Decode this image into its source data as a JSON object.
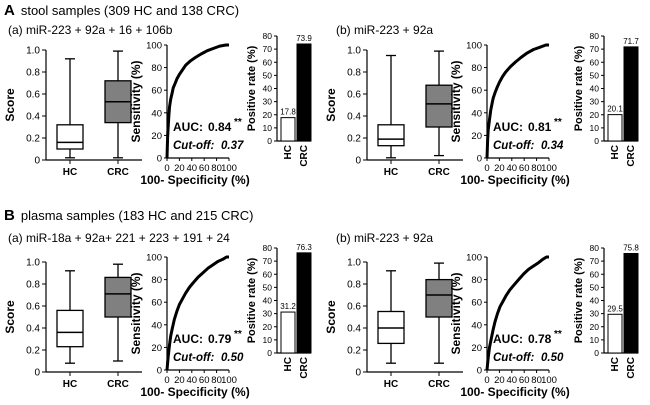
{
  "colors": {
    "crc_box": "#808080",
    "hc_box": "#ffffff",
    "bar_crc": "#000000",
    "bar_hc": "#ffffff",
    "line": "#000000"
  },
  "sections": [
    {
      "letter": "A",
      "title": "stool samples (309 HC and 138 CRC)",
      "panels": [
        {
          "label": "(a) miR-223 + 92a + 16 + 106b",
          "box": {
            "ylabel": "Score",
            "ylim": [
              0,
              1.0
            ],
            "yticks": [
              "0",
              "0.2",
              "0.4",
              "0.6",
              "0.8",
              "1.0"
            ],
            "tick_values": [
              0,
              0.2,
              0.4,
              0.6,
              0.8,
              1.0
            ],
            "groups": [
              {
                "name": "HC",
                "min": 0.02,
                "q1": 0.1,
                "median": 0.16,
                "q3": 0.32,
                "max": 0.92
              },
              {
                "name": "CRC",
                "min": 0.02,
                "q1": 0.34,
                "median": 0.53,
                "q3": 0.72,
                "max": 0.99
              }
            ]
          },
          "roc": {
            "xlabel": "100- Specificity (%)",
            "ylabel": "Sensitivity (%)",
            "xlim": [
              0,
              100
            ],
            "ylim": [
              0,
              100
            ],
            "ticks": [
              "0",
              "20",
              "40",
              "60",
              "80",
              "100"
            ],
            "tick_values": [
              0,
              20,
              40,
              60,
              80,
              100
            ],
            "auc_label": "AUC:",
            "auc": "0.84",
            "sig": "**",
            "cutoff_label": "Cut-off:",
            "cutoff": "0.37",
            "points": [
              [
                0,
                0
              ],
              [
                1,
                18
              ],
              [
                2,
                28
              ],
              [
                3,
                38
              ],
              [
                4,
                45
              ],
              [
                6,
                52
              ],
              [
                8,
                57
              ],
              [
                10,
                62
              ],
              [
                13,
                66
              ],
              [
                16,
                70
              ],
              [
                20,
                74
              ],
              [
                25,
                78
              ],
              [
                30,
                82
              ],
              [
                38,
                86
              ],
              [
                46,
                89
              ],
              [
                55,
                92
              ],
              [
                65,
                95
              ],
              [
                75,
                97
              ],
              [
                85,
                99
              ],
              [
                95,
                100
              ],
              [
                100,
                100
              ]
            ]
          },
          "rate": {
            "ylabel": "Positive rate (%)",
            "ylim": [
              0,
              80
            ],
            "yticks": [
              "0",
              "10",
              "20",
              "30",
              "40",
              "50",
              "60",
              "70",
              "80"
            ],
            "tick_values": [
              0,
              10,
              20,
              30,
              40,
              50,
              60,
              70,
              80
            ],
            "categories": [
              "HC",
              "CRC"
            ],
            "values": [
              17.8,
              73.9
            ],
            "value_labels": [
              "17.8",
              "73.9"
            ]
          }
        },
        {
          "label": "(b) miR-223 + 92a",
          "box": {
            "ylabel": "Score",
            "ylim": [
              0,
              1.0
            ],
            "yticks": [
              "0",
              "0.2",
              "0.4",
              "0.6",
              "0.8",
              "1.0"
            ],
            "tick_values": [
              0,
              0.2,
              0.4,
              0.6,
              0.8,
              1.0
            ],
            "groups": [
              {
                "name": "HC",
                "min": 0.02,
                "q1": 0.13,
                "median": 0.19,
                "q3": 0.32,
                "max": 0.95
              },
              {
                "name": "CRC",
                "min": 0.04,
                "q1": 0.3,
                "median": 0.51,
                "q3": 0.68,
                "max": 0.99
              }
            ]
          },
          "roc": {
            "xlabel": "100- Specificity (%)",
            "ylabel": "Sensitivity (%)",
            "xlim": [
              0,
              100
            ],
            "ylim": [
              0,
              100
            ],
            "ticks": [
              "0",
              "20",
              "40",
              "60",
              "80",
              "100"
            ],
            "tick_values": [
              0,
              20,
              40,
              60,
              80,
              100
            ],
            "auc_label": "AUC:",
            "auc": "0.81",
            "sig": "**",
            "cutoff_label": "Cut-off:",
            "cutoff": "0.34",
            "points": [
              [
                0,
                0
              ],
              [
                1,
                15
              ],
              [
                2,
                25
              ],
              [
                4,
                34
              ],
              [
                6,
                42
              ],
              [
                8,
                48
              ],
              [
                10,
                53
              ],
              [
                13,
                58
              ],
              [
                16,
                62
              ],
              [
                20,
                67
              ],
              [
                25,
                72
              ],
              [
                30,
                76
              ],
              [
                38,
                81
              ],
              [
                46,
                85
              ],
              [
                55,
                89
              ],
              [
                65,
                93
              ],
              [
                75,
                96
              ],
              [
                85,
                98
              ],
              [
                95,
                100
              ],
              [
                100,
                100
              ]
            ]
          },
          "rate": {
            "ylabel": "Positive rate (%)",
            "ylim": [
              0,
              80
            ],
            "yticks": [
              "0",
              "10",
              "20",
              "30",
              "40",
              "50",
              "60",
              "70",
              "80"
            ],
            "tick_values": [
              0,
              10,
              20,
              30,
              40,
              50,
              60,
              70,
              80
            ],
            "categories": [
              "HC",
              "CRC"
            ],
            "values": [
              20.1,
              71.7
            ],
            "value_labels": [
              "20.1",
              "71.7"
            ]
          }
        }
      ]
    },
    {
      "letter": "B",
      "title": "plasma samples (183 HC and 215 CRC)",
      "panels": [
        {
          "label": "(a) miR-18a + 92a+ 221 + 223 + 191 + 24",
          "box": {
            "ylabel": "Score",
            "ylim": [
              0,
              1.0
            ],
            "yticks": [
              "0",
              "0.2",
              "0.4",
              "0.6",
              "0.8",
              "1.0"
            ],
            "tick_values": [
              0,
              0.2,
              0.4,
              0.6,
              0.8,
              1.0
            ],
            "groups": [
              {
                "name": "HC",
                "min": 0.08,
                "q1": 0.23,
                "median": 0.36,
                "q3": 0.56,
                "max": 0.92
              },
              {
                "name": "CRC",
                "min": 0.1,
                "q1": 0.5,
                "median": 0.71,
                "q3": 0.86,
                "max": 0.98
              }
            ]
          },
          "roc": {
            "xlabel": "100- Specificity (%)",
            "ylabel": "Sensitivity (%)",
            "xlim": [
              0,
              100
            ],
            "ylim": [
              0,
              100
            ],
            "ticks": [
              "0",
              "20",
              "40",
              "60",
              "80",
              "100"
            ],
            "tick_values": [
              0,
              20,
              40,
              60,
              80,
              100
            ],
            "auc_label": "AUC:",
            "auc": "0.79",
            "sig": "**",
            "cutoff_label": "Cut-off:",
            "cutoff": "0.50",
            "points": [
              [
                0,
                0
              ],
              [
                2,
                12
              ],
              [
                4,
                22
              ],
              [
                6,
                30
              ],
              [
                9,
                38
              ],
              [
                12,
                45
              ],
              [
                16,
                52
              ],
              [
                20,
                58
              ],
              [
                25,
                63
              ],
              [
                30,
                68
              ],
              [
                36,
                73
              ],
              [
                42,
                77
              ],
              [
                50,
                82
              ],
              [
                58,
                86
              ],
              [
                66,
                90
              ],
              [
                74,
                93
              ],
              [
                82,
                96
              ],
              [
                90,
                98
              ],
              [
                96,
                100
              ],
              [
                100,
                100
              ]
            ]
          },
          "rate": {
            "ylabel": "Positive rate (%)",
            "ylim": [
              0,
              80
            ],
            "yticks": [
              "0",
              "10",
              "20",
              "30",
              "40",
              "50",
              "60",
              "70",
              "80"
            ],
            "tick_values": [
              0,
              10,
              20,
              30,
              40,
              50,
              60,
              70,
              80
            ],
            "categories": [
              "HC",
              "CRC"
            ],
            "values": [
              31.2,
              76.3
            ],
            "value_labels": [
              "31.2",
              "76.3"
            ]
          }
        },
        {
          "label": "(b) miR-223 + 92a",
          "box": {
            "ylabel": "Score",
            "ylim": [
              0,
              1.0
            ],
            "yticks": [
              "0",
              "0.2",
              "0.4",
              "0.6",
              "0.8",
              "1.0"
            ],
            "tick_values": [
              0,
              0.2,
              0.4,
              0.6,
              0.8,
              1.0
            ],
            "groups": [
              {
                "name": "HC",
                "min": 0.08,
                "q1": 0.26,
                "median": 0.4,
                "q3": 0.55,
                "max": 0.92
              },
              {
                "name": "CRC",
                "min": 0.08,
                "q1": 0.5,
                "median": 0.7,
                "q3": 0.84,
                "max": 0.99
              }
            ]
          },
          "roc": {
            "xlabel": "100- Specificity (%)",
            "ylabel": "Sensitivity (%)",
            "xlim": [
              0,
              100
            ],
            "ylim": [
              0,
              100
            ],
            "ticks": [
              "0",
              "20",
              "40",
              "60",
              "80",
              "100"
            ],
            "tick_values": [
              0,
              20,
              40,
              60,
              80,
              100
            ],
            "auc_label": "AUC:",
            "auc": "0.78",
            "sig": "**",
            "cutoff_label": "Cut-off:",
            "cutoff": "0.50",
            "points": [
              [
                0,
                0
              ],
              [
                2,
                11
              ],
              [
                4,
                20
              ],
              [
                7,
                28
              ],
              [
                10,
                36
              ],
              [
                13,
                43
              ],
              [
                17,
                50
              ],
              [
                21,
                56
              ],
              [
                26,
                61
              ],
              [
                31,
                66
              ],
              [
                37,
                71
              ],
              [
                43,
                75
              ],
              [
                51,
                80
              ],
              [
                59,
                85
              ],
              [
                67,
                89
              ],
              [
                75,
                92
              ],
              [
                83,
                95
              ],
              [
                90,
                98
              ],
              [
                96,
                100
              ],
              [
                100,
                100
              ]
            ]
          },
          "rate": {
            "ylabel": "Positive rate (%)",
            "ylim": [
              0,
              80
            ],
            "yticks": [
              "0",
              "10",
              "20",
              "30",
              "40",
              "50",
              "60",
              "70",
              "80"
            ],
            "tick_values": [
              0,
              10,
              20,
              30,
              40,
              50,
              60,
              70,
              80
            ],
            "categories": [
              "HC",
              "CRC"
            ],
            "values": [
              29.5,
              75.8
            ],
            "value_labels": [
              "29.5",
              "75.8"
            ]
          }
        }
      ]
    }
  ]
}
